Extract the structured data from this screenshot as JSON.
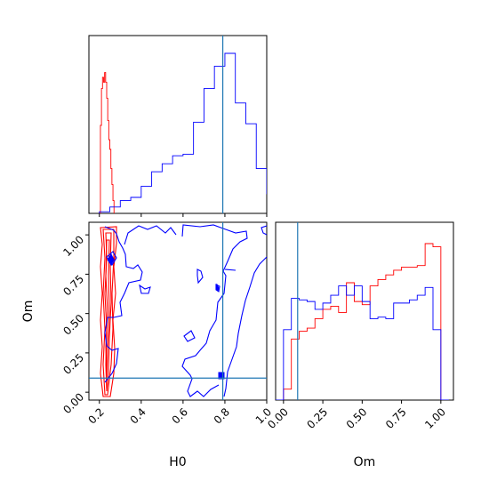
{
  "chart_data": {
    "type": "corner",
    "parameters": [
      "H0",
      "Om"
    ],
    "truth": {
      "H0": 0.79,
      "Om": 0.09
    },
    "colors": {
      "series_a": "#ff0000",
      "series_b": "#0000ff",
      "truth": "#1f77b4"
    },
    "panels": [
      {
        "id": "h0-marginal",
        "type": "histogram",
        "xlim": [
          0.15,
          1.0
        ],
        "xlabel": "",
        "x_tick_labels_shown": false,
        "series": [
          {
            "color": "red",
            "bins": [
              0.2,
              0.205,
              0.21,
              0.215,
              0.22,
              0.225,
              0.23,
              0.235,
              0.24,
              0.245,
              0.25,
              0.255,
              0.26,
              0.265,
              0.27
            ],
            "counts": [
              0.0,
              0.55,
              0.78,
              0.85,
              0.82,
              0.88,
              0.82,
              0.72,
              0.58,
              0.46,
              0.4,
              0.28,
              0.18,
              0.08,
              0.0
            ]
          },
          {
            "color": "blue",
            "bins": [
              0.2,
              0.25,
              0.3,
              0.35,
              0.4,
              0.45,
              0.5,
              0.55,
              0.6,
              0.65,
              0.7,
              0.75,
              0.8,
              0.85,
              0.9,
              0.95,
              1.0
            ],
            "counts": [
              0.01,
              0.04,
              0.08,
              0.1,
              0.17,
              0.26,
              0.31,
              0.36,
              0.37,
              0.57,
              0.78,
              0.92,
              1.0,
              0.69,
              0.56,
              0.28,
              0.12
            ]
          }
        ]
      },
      {
        "id": "h0-om-joint",
        "type": "contour",
        "xlim": [
          0.15,
          1.0
        ],
        "ylim": [
          -0.05,
          1.08
        ],
        "xlabel": "H0",
        "ylabel": "Om",
        "x_ticks": [
          "0.2",
          "0.4",
          "0.6",
          "0.8",
          "1.0"
        ],
        "y_ticks": [
          "0.00",
          "0.25",
          "0.50",
          "0.75",
          "1.00"
        ]
      },
      {
        "id": "om-marginal",
        "type": "histogram",
        "xlim": [
          -0.05,
          1.08
        ],
        "xlabel": "Om",
        "x_ticks": [
          "0.00",
          "0.25",
          "0.50",
          "0.75",
          "1.00"
        ],
        "series": [
          {
            "color": "red",
            "bins": [
              0.0,
              0.05,
              0.1,
              0.15,
              0.2,
              0.25,
              0.3,
              0.35,
              0.4,
              0.45,
              0.5,
              0.55,
              0.6,
              0.65,
              0.7,
              0.75,
              0.8,
              0.85,
              0.9,
              0.95,
              1.0
            ],
            "counts": [
              0.07,
              0.39,
              0.44,
              0.46,
              0.52,
              0.58,
              0.6,
              0.56,
              0.75,
              0.63,
              0.61,
              0.73,
              0.77,
              0.8,
              0.83,
              0.85,
              0.85,
              0.86,
              1.0,
              0.98
            ]
          },
          {
            "color": "blue",
            "bins": [
              -0.05,
              0.0,
              0.05,
              0.1,
              0.15,
              0.2,
              0.25,
              0.3,
              0.35,
              0.4,
              0.45,
              0.5,
              0.55,
              0.6,
              0.65,
              0.7,
              0.75,
              0.8,
              0.85,
              0.9,
              0.95,
              1.0,
              1.05
            ],
            "counts": [
              0.0,
              0.45,
              0.65,
              0.64,
              0.63,
              0.58,
              0.62,
              0.67,
              0.73,
              0.67,
              0.73,
              0.63,
              0.52,
              0.53,
              0.52,
              0.62,
              0.62,
              0.64,
              0.67,
              0.72,
              0.45,
              0.0
            ]
          }
        ]
      }
    ]
  }
}
